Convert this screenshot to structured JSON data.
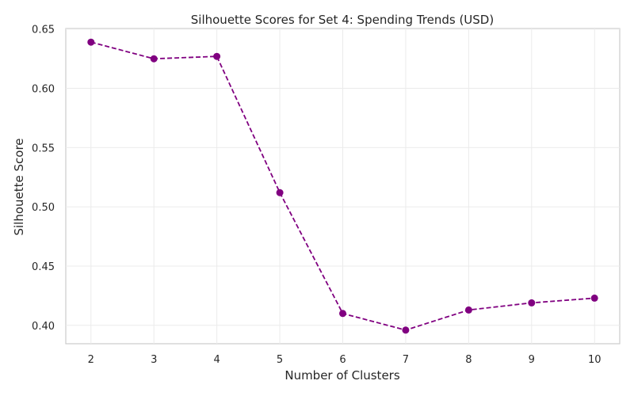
{
  "chart_data": {
    "type": "line",
    "title": "Silhouette Scores for Set 4: Spending Trends (USD)",
    "xlabel": "Number of Clusters",
    "ylabel": "Silhouette Score",
    "x": [
      2,
      3,
      4,
      5,
      6,
      7,
      8,
      9,
      10
    ],
    "series": [
      {
        "values": [
          0.639,
          0.625,
          0.627,
          0.512,
          0.41,
          0.396,
          0.413,
          0.419,
          0.423
        ],
        "color": "#800080",
        "line_style": "dashed",
        "marker": "circle"
      }
    ],
    "xlim": [
      1.6,
      10.4
    ],
    "ylim": [
      0.3845,
      0.6505
    ],
    "xticks": [
      "2",
      "3",
      "4",
      "5",
      "6",
      "7",
      "8",
      "9",
      "10"
    ],
    "yticks": [
      "0.40",
      "0.45",
      "0.50",
      "0.55",
      "0.60",
      "0.65"
    ],
    "grid": true,
    "legend": "none"
  }
}
